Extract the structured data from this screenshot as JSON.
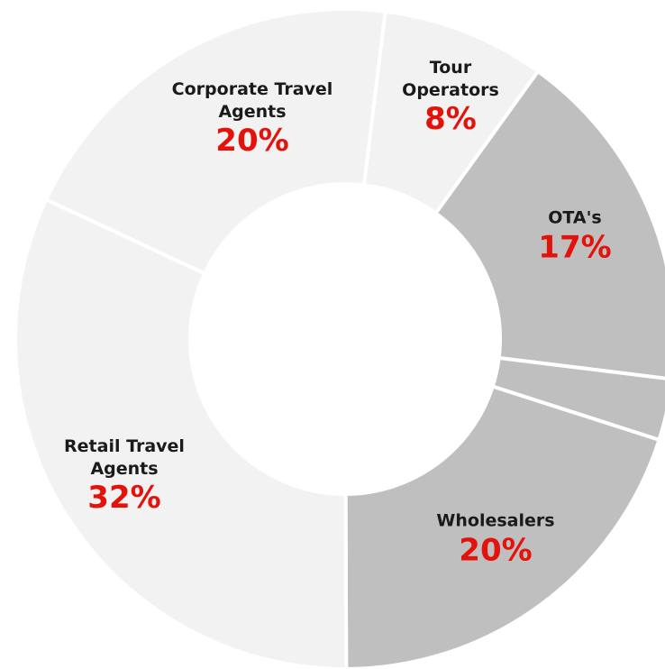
{
  "chart_data": {
    "type": "donut",
    "categories": [
      "Tour Operators",
      "OTA's",
      null,
      "Wholesalers",
      "Retail Travel Agents",
      "Corporate  Travel Agents"
    ],
    "values": [
      8,
      17,
      3,
      20,
      32,
      20
    ],
    "value_labels": [
      "8%",
      "17%",
      null,
      "20%",
      "32%",
      "20%"
    ],
    "colors": [
      "#f2f2f2",
      "#bfbfbf",
      "#bfbfbf",
      "#bfbfbf",
      "#f2f2f2",
      "#f2f2f2"
    ]
  }
}
